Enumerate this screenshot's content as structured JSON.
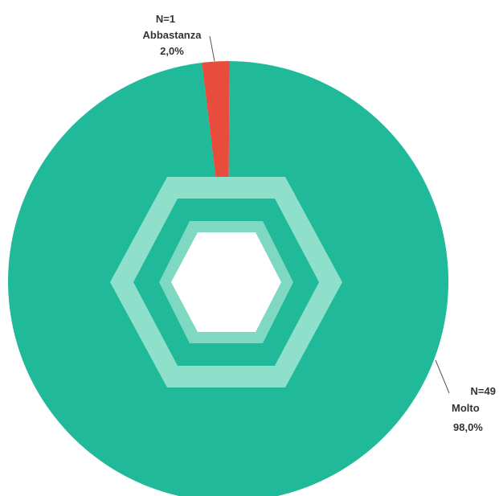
{
  "chart_data": {
    "type": "pie",
    "title": "",
    "slices": [
      {
        "label": "Abbastanza",
        "count_label": "N=1",
        "pct_label": "2,0%",
        "value": 2.0,
        "color": "#e74c3c"
      },
      {
        "label": "Molto",
        "count_label": "N=49",
        "pct_label": "98,0%",
        "value": 98.0,
        "color": "#20b999"
      }
    ]
  },
  "colors": {
    "background": "#ffffff",
    "outer_hexagon": "#8ee0cb",
    "inner_hexagon": "#7fd8c1",
    "center": "#ffffff",
    "leader_line": "#555555",
    "label_text": "#333333"
  }
}
